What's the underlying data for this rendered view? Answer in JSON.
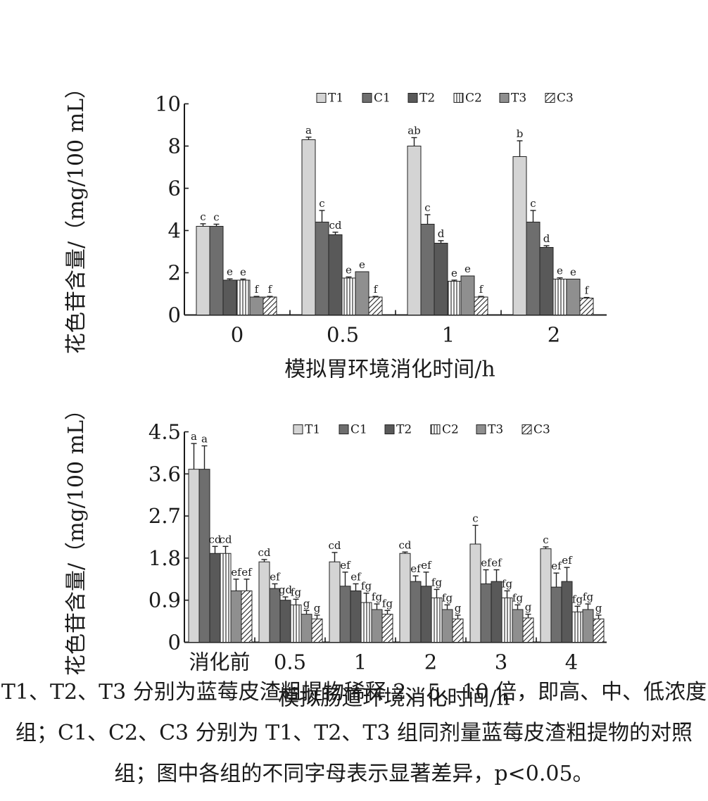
{
  "charts_meta": {
    "legend_labels": [
      "T1",
      "C1",
      "T2",
      "C2",
      "T3",
      "C3"
    ],
    "series_colors": {
      "T1": "#d4d4d4",
      "C1": "#6e6e6e",
      "T2": "#595959",
      "C2": "#ffffff",
      "T3": "#8f8f8f",
      "C3": "#ffffff"
    },
    "series_patterns": {
      "T1": "light-fill",
      "C1": "medium-dark",
      "T2": "dark",
      "C2": "vertical-stripes",
      "T3": "medium-gray",
      "C3": "diagonal-hatch"
    }
  },
  "chart_data": [
    {
      "type": "bar",
      "title": "",
      "xlabel": "模拟胃环境消化时间/h",
      "ylabel": "花色苷含量/（mg/100 mL）",
      "categories": [
        "0",
        "0.5",
        "1",
        "2"
      ],
      "ylim": [
        0,
        10
      ],
      "yticks": [
        "0",
        "2",
        "4",
        "6",
        "8",
        "10"
      ],
      "legend_position": "top-right",
      "series": [
        {
          "name": "T1",
          "values": [
            4.2,
            8.3,
            8.0,
            7.5
          ],
          "errors": [
            0.12,
            0.12,
            0.4,
            0.75
          ],
          "letters": [
            "c",
            "a",
            "ab",
            "b"
          ]
        },
        {
          "name": "C1",
          "values": [
            4.2,
            4.4,
            4.3,
            4.4
          ],
          "errors": [
            0.1,
            0.55,
            0.45,
            0.55
          ],
          "letters": [
            "c",
            "c",
            "c",
            "c"
          ]
        },
        {
          "name": "T2",
          "values": [
            1.65,
            3.8,
            3.4,
            3.2
          ],
          "errors": [
            0.06,
            0.12,
            0.12,
            0.08
          ],
          "letters": [
            "e",
            "cd",
            "d",
            "d"
          ]
        },
        {
          "name": "C2",
          "values": [
            1.65,
            1.75,
            1.6,
            1.7
          ],
          "errors": [
            0.05,
            0.05,
            0.05,
            0.06
          ],
          "letters": [
            "e",
            "e",
            "e",
            "e"
          ]
        },
        {
          "name": "T3",
          "values": [
            0.85,
            2.05,
            1.85,
            1.7
          ],
          "errors": [
            0.03,
            0.0,
            0.0,
            0.0
          ],
          "letters": [
            "f",
            "e",
            "e",
            "e"
          ]
        },
        {
          "name": "C3",
          "values": [
            0.85,
            0.85,
            0.85,
            0.8
          ],
          "errors": [
            0.03,
            0.03,
            0.03,
            0.03
          ],
          "letters": [
            "f",
            "f",
            "f",
            "f"
          ]
        }
      ]
    },
    {
      "type": "bar",
      "title": "",
      "xlabel": "模拟肠道环境消化时间/h",
      "ylabel": "花色苷含量/（mg/100 mL）",
      "categories": [
        "消化前",
        "0.5",
        "1",
        "2",
        "3",
        "4"
      ],
      "ylim": [
        0,
        4.5
      ],
      "yticks": [
        "0",
        "0.9",
        "1.8",
        "2.7",
        "3.6",
        "4.5"
      ],
      "legend_position": "top-right",
      "series": [
        {
          "name": "T1",
          "values": [
            3.7,
            1.72,
            1.72,
            1.9,
            2.1,
            2.0
          ],
          "errors": [
            0.55,
            0.05,
            0.2,
            0.03,
            0.4,
            0.04
          ],
          "letters": [
            "a",
            "cd",
            "cd",
            "cd",
            "c",
            "c"
          ]
        },
        {
          "name": "C1",
          "values": [
            3.7,
            1.15,
            1.2,
            1.3,
            1.25,
            1.18
          ],
          "errors": [
            0.5,
            0.1,
            0.3,
            0.12,
            0.3,
            0.3
          ],
          "letters": [
            "a",
            "ef",
            "ef",
            "ef",
            "ef",
            "ef"
          ]
        },
        {
          "name": "T2",
          "values": [
            1.9,
            0.9,
            1.1,
            1.2,
            1.3,
            1.3
          ],
          "errors": [
            0.15,
            0.07,
            0.15,
            0.3,
            0.25,
            0.3
          ],
          "letters": [
            "cd",
            "gd",
            "ef",
            "ef",
            "ef",
            "ef"
          ]
        },
        {
          "name": "C2",
          "values": [
            1.9,
            0.8,
            0.85,
            0.95,
            0.95,
            0.65
          ],
          "errors": [
            0.15,
            0.12,
            0.2,
            0.18,
            0.15,
            0.12
          ],
          "letters": [
            "cd",
            "fg",
            "fg",
            "fg",
            "fg",
            "fg"
          ]
        },
        {
          "name": "T3",
          "values": [
            1.1,
            0.6,
            0.7,
            0.7,
            0.7,
            0.7
          ],
          "errors": [
            0.25,
            0.08,
            0.12,
            0.1,
            0.1,
            0.12
          ],
          "letters": [
            "ef",
            "g",
            "fg",
            "fg",
            "fg",
            "fg"
          ]
        },
        {
          "name": "C3",
          "values": [
            1.1,
            0.5,
            0.6,
            0.5,
            0.52,
            0.5
          ],
          "errors": [
            0.25,
            0.08,
            0.08,
            0.08,
            0.08,
            0.08
          ],
          "letters": [
            "ef",
            "g",
            "fg",
            "g",
            "g",
            "g"
          ]
        }
      ]
    }
  ],
  "caption": {
    "line1": "T1、T2、T3 分别为蓝莓皮渣粗提物稀释 2、5、10 倍，即高、中、低浓度",
    "line2": "组；C1、C2、C3 分别为 T1、T2、T3 组同剂量蓝莓皮渣粗提物的对照",
    "line3": "组；图中各组的不同字母表示显著差异，p<0.05。"
  }
}
